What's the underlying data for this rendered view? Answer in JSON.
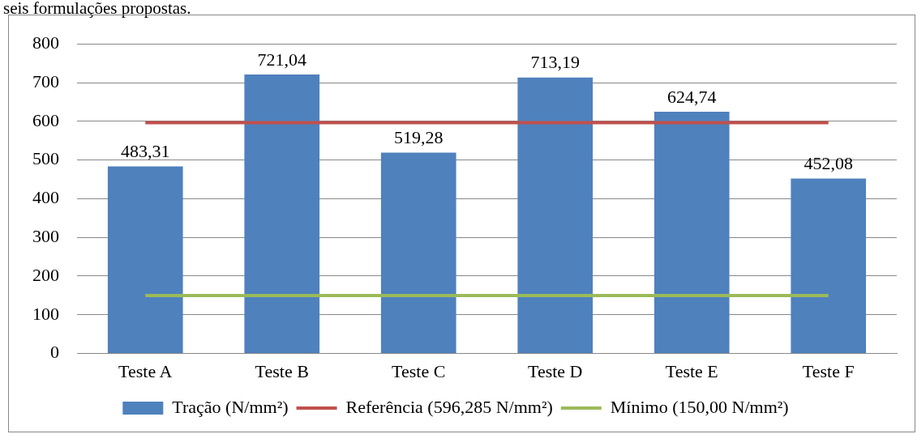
{
  "chart_data": {
    "type": "bar",
    "annotations": [
      "seis formulações propostas."
    ],
    "categories": [
      "Teste A",
      "Teste B",
      "Teste C",
      "Teste D",
      "Teste E",
      "Teste F"
    ],
    "series": [
      {
        "name": "Tração (N/mm²)",
        "color": "#4f81bd",
        "values": [
          483.31,
          721.04,
          519.28,
          713.19,
          624.74,
          452.08
        ],
        "value_labels": [
          "483,31",
          "721,04",
          "519,28",
          "713,19",
          "624,74",
          "452,08"
        ]
      },
      {
        "name": "Referência (596,285 N/mm²)",
        "type": "line",
        "color": "#c0504d",
        "values": [
          596.285,
          596.285,
          596.285,
          596.285,
          596.285,
          596.285
        ]
      },
      {
        "name": "Mínimo (150,00 N/mm²)",
        "type": "line",
        "color": "#9bbb59",
        "values": [
          150,
          150,
          150,
          150,
          150,
          150
        ]
      }
    ],
    "ylim": [
      0,
      800
    ],
    "yticks": [
      0,
      100,
      200,
      300,
      400,
      500,
      600,
      700,
      800
    ],
    "grid": "y",
    "legend": "bottom",
    "marker": "none"
  }
}
